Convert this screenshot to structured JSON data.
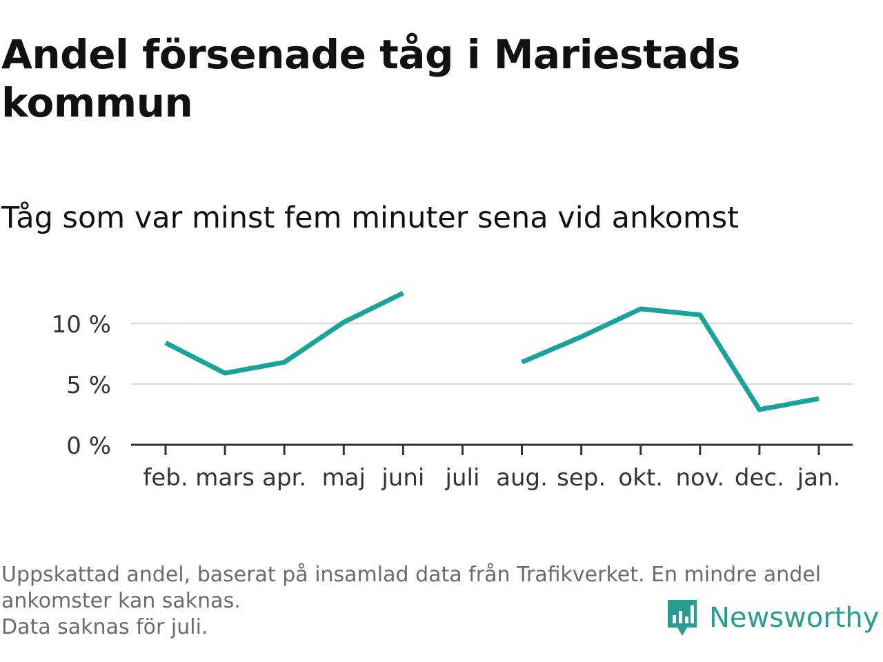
{
  "title": "Andel försenade tåg i Mariestads kommun",
  "subtitle": "Tåg som var minst fem minuter sena vid ankomst",
  "footer": {
    "note_line1": "Uppskattad andel, baserat på insamlad data från Trafikverket. En mindre andel",
    "note_line2": "ankomster kan saknas.",
    "note_line3": "Data saknas för juli."
  },
  "brand": {
    "name": "Newsworthy",
    "icon": "newsworthy-logo-icon",
    "color": "#2a9d93"
  },
  "chart_data": {
    "type": "line",
    "title": "Andel försenade tåg i Mariestads kommun",
    "subtitle": "Tåg som var minst fem minuter sena vid ankomst",
    "xlabel": "",
    "ylabel": "",
    "categories": [
      "feb.",
      "mars",
      "apr.",
      "maj",
      "juni",
      "juli",
      "aug.",
      "sep.",
      "okt.",
      "nov.",
      "dec.",
      "jan."
    ],
    "series": [
      {
        "values": [
          8.4,
          5.9,
          6.8,
          10.1,
          12.5,
          null,
          6.8,
          8.9,
          11.2,
          10.7,
          2.9,
          3.8
        ],
        "color": "#1aa39a"
      }
    ],
    "yticks": [
      0,
      5,
      10
    ],
    "ytick_labels": [
      "0 %",
      "5 %",
      "10 %"
    ],
    "ylim": [
      0,
      13
    ],
    "grid": true,
    "legend": "none"
  }
}
